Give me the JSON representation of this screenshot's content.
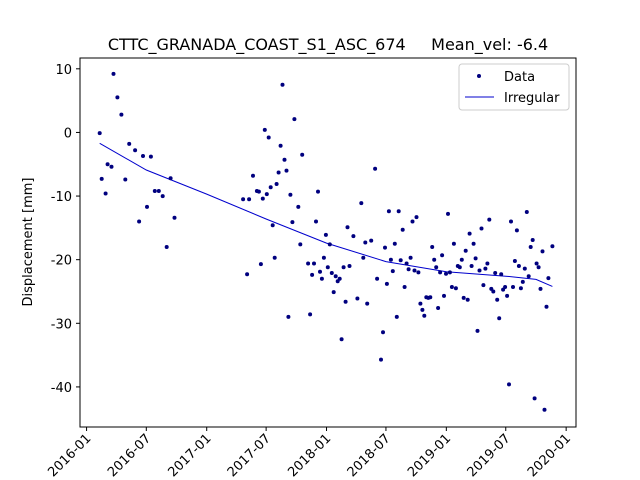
{
  "chart_data": {
    "type": "scatter",
    "title": "CTTC_GRANADA_COAST_S1_ASC_674     Mean_vel: -6.4",
    "xlabel": "",
    "ylabel": "Displacement [mm]",
    "x_ticks": [
      "2016-01",
      "2016-07",
      "2017-01",
      "2017-07",
      "2018-01",
      "2018-07",
      "2019-01",
      "2019-07",
      "2020-01"
    ],
    "x_tick_values": [
      "2016-01-01",
      "2016-07-01",
      "2017-01-01",
      "2017-07-01",
      "2018-01-01",
      "2018-07-01",
      "2019-01-01",
      "2019-07-01",
      "2020-01-01"
    ],
    "xlim": [
      "2015-12-12",
      "2020-01-31"
    ],
    "y_ticks": [
      10,
      0,
      -10,
      -20,
      -30,
      -40
    ],
    "ylim": [
      -46.3,
      11.7
    ],
    "legend": {
      "placement": "top-right",
      "entries": [
        "Data",
        "Irregular"
      ]
    },
    "grid": false,
    "colors": {
      "data": "#00007f",
      "fit": "#0000cd"
    },
    "series": [
      {
        "name": "Data",
        "type": "scatter",
        "points": [
          [
            "2016-02-10",
            -0.1
          ],
          [
            "2016-02-16",
            -7.3
          ],
          [
            "2016-02-28",
            -9.6
          ],
          [
            "2016-03-05",
            -5.0
          ],
          [
            "2016-03-17",
            -5.4
          ],
          [
            "2016-03-23",
            9.2
          ],
          [
            "2016-04-04",
            5.5
          ],
          [
            "2016-04-16",
            2.8
          ],
          [
            "2016-04-28",
            -7.4
          ],
          [
            "2016-05-10",
            -1.8
          ],
          [
            "2016-05-28",
            -2.8
          ],
          [
            "2016-06-09",
            -14.0
          ],
          [
            "2016-06-21",
            -3.7
          ],
          [
            "2016-07-03",
            -11.7
          ],
          [
            "2016-07-15",
            -3.8
          ],
          [
            "2016-07-27",
            -9.2
          ],
          [
            "2016-08-08",
            -9.2
          ],
          [
            "2016-08-20",
            -10.0
          ],
          [
            "2016-09-01",
            -18.0
          ],
          [
            "2016-09-13",
            -7.2
          ],
          [
            "2016-09-25",
            -13.4
          ],
          [
            "2017-04-22",
            -10.5
          ],
          [
            "2017-05-04",
            -22.3
          ],
          [
            "2017-05-10",
            -10.5
          ],
          [
            "2017-05-22",
            -6.8
          ],
          [
            "2017-06-03",
            -9.2
          ],
          [
            "2017-06-09",
            -9.3
          ],
          [
            "2017-06-15",
            -20.7
          ],
          [
            "2017-06-21",
            -10.4
          ],
          [
            "2017-06-27",
            0.4
          ],
          [
            "2017-07-03",
            -9.7
          ],
          [
            "2017-07-09",
            -0.8
          ],
          [
            "2017-07-15",
            -8.6
          ],
          [
            "2017-07-21",
            -14.6
          ],
          [
            "2017-07-27",
            -19.7
          ],
          [
            "2017-08-02",
            -8.1
          ],
          [
            "2017-08-08",
            -6.3
          ],
          [
            "2017-08-14",
            -2.1
          ],
          [
            "2017-08-20",
            7.5
          ],
          [
            "2017-08-26",
            -4.3
          ],
          [
            "2017-09-01",
            -6.0
          ],
          [
            "2017-09-07",
            -29.0
          ],
          [
            "2017-09-13",
            -9.8
          ],
          [
            "2017-09-19",
            -14.1
          ],
          [
            "2017-09-25",
            2.1
          ],
          [
            "2017-10-07",
            -11.7
          ],
          [
            "2017-10-13",
            -17.6
          ],
          [
            "2017-10-19",
            -3.5
          ],
          [
            "2017-11-06",
            -20.6
          ],
          [
            "2017-11-12",
            -28.6
          ],
          [
            "2017-11-18",
            -22.4
          ],
          [
            "2017-11-24",
            -20.6
          ],
          [
            "2017-11-30",
            -14.0
          ],
          [
            "2017-12-06",
            -9.3
          ],
          [
            "2017-12-12",
            -21.9
          ],
          [
            "2017-12-18",
            -23.0
          ],
          [
            "2017-12-24",
            -19.7
          ],
          [
            "2017-12-30",
            -16.1
          ],
          [
            "2018-01-05",
            -21.2
          ],
          [
            "2018-01-11",
            -17.6
          ],
          [
            "2018-01-17",
            -22.1
          ],
          [
            "2018-01-23",
            -25.1
          ],
          [
            "2018-01-29",
            -22.6
          ],
          [
            "2018-02-04",
            -23.4
          ],
          [
            "2018-02-10",
            -23.0
          ],
          [
            "2018-02-16",
            -32.5
          ],
          [
            "2018-02-22",
            -21.2
          ],
          [
            "2018-02-28",
            -26.6
          ],
          [
            "2018-03-06",
            -14.9
          ],
          [
            "2018-03-12",
            -21.0
          ],
          [
            "2018-03-24",
            -16.3
          ],
          [
            "2018-04-05",
            -26.1
          ],
          [
            "2018-04-17",
            -11.1
          ],
          [
            "2018-04-23",
            -19.7
          ],
          [
            "2018-04-29",
            -17.3
          ],
          [
            "2018-05-05",
            -26.9
          ],
          [
            "2018-05-17",
            -17.0
          ],
          [
            "2018-05-29",
            -5.7
          ],
          [
            "2018-06-04",
            -23.0
          ],
          [
            "2018-06-16",
            -35.7
          ],
          [
            "2018-06-22",
            -31.4
          ],
          [
            "2018-06-28",
            -18.1
          ],
          [
            "2018-07-04",
            -23.8
          ],
          [
            "2018-07-10",
            -12.4
          ],
          [
            "2018-07-16",
            -20.0
          ],
          [
            "2018-07-22",
            -21.8
          ],
          [
            "2018-07-28",
            -17.5
          ],
          [
            "2018-08-03",
            -29.0
          ],
          [
            "2018-08-09",
            -12.4
          ],
          [
            "2018-08-15",
            -20.1
          ],
          [
            "2018-08-21",
            -15.3
          ],
          [
            "2018-08-27",
            -24.3
          ],
          [
            "2018-09-02",
            -20.6
          ],
          [
            "2018-09-08",
            -21.5
          ],
          [
            "2018-09-14",
            -19.7
          ],
          [
            "2018-09-20",
            -14.0
          ],
          [
            "2018-09-26",
            -21.7
          ],
          [
            "2018-10-02",
            -13.3
          ],
          [
            "2018-10-08",
            -22.0
          ],
          [
            "2018-10-14",
            -26.9
          ],
          [
            "2018-10-20",
            -27.9
          ],
          [
            "2018-10-26",
            -28.8
          ],
          [
            "2018-11-01",
            -25.9
          ],
          [
            "2018-11-07",
            -26.0
          ],
          [
            "2018-11-13",
            -25.9
          ],
          [
            "2018-11-19",
            -18.0
          ],
          [
            "2018-11-25",
            -20.0
          ],
          [
            "2018-12-01",
            -21.2
          ],
          [
            "2018-12-07",
            -27.6
          ],
          [
            "2018-12-13",
            -22.0
          ],
          [
            "2018-12-19",
            -19.3
          ],
          [
            "2018-12-25",
            -25.7
          ],
          [
            "2018-12-31",
            -22.2
          ],
          [
            "2019-01-06",
            -12.8
          ],
          [
            "2019-01-12",
            -22.0
          ],
          [
            "2019-01-18",
            -24.3
          ],
          [
            "2019-01-24",
            -17.5
          ],
          [
            "2019-01-30",
            -24.5
          ],
          [
            "2019-02-05",
            -21.0
          ],
          [
            "2019-02-11",
            -21.2
          ],
          [
            "2019-02-17",
            -20.0
          ],
          [
            "2019-02-23",
            -26.0
          ],
          [
            "2019-03-01",
            -18.6
          ],
          [
            "2019-03-07",
            -26.3
          ],
          [
            "2019-03-13",
            -15.9
          ],
          [
            "2019-03-19",
            -21.0
          ],
          [
            "2019-03-25",
            -17.5
          ],
          [
            "2019-03-31",
            -19.8
          ],
          [
            "2019-04-06",
            -31.2
          ],
          [
            "2019-04-12",
            -21.7
          ],
          [
            "2019-04-18",
            -15.1
          ],
          [
            "2019-04-24",
            -24.0
          ],
          [
            "2019-04-30",
            -21.4
          ],
          [
            "2019-05-06",
            -20.6
          ],
          [
            "2019-05-12",
            -13.7
          ],
          [
            "2019-05-18",
            -24.6
          ],
          [
            "2019-05-24",
            -25.0
          ],
          [
            "2019-05-30",
            -22.1
          ],
          [
            "2019-06-05",
            -26.3
          ],
          [
            "2019-06-11",
            -29.2
          ],
          [
            "2019-06-17",
            -22.3
          ],
          [
            "2019-06-23",
            -24.7
          ],
          [
            "2019-06-29",
            -24.3
          ],
          [
            "2019-07-05",
            -25.7
          ],
          [
            "2019-07-11",
            -39.6
          ],
          [
            "2019-07-17",
            -14.0
          ],
          [
            "2019-07-23",
            -24.3
          ],
          [
            "2019-07-29",
            -20.2
          ],
          [
            "2019-08-04",
            -15.4
          ],
          [
            "2019-08-10",
            -21.0
          ],
          [
            "2019-08-16",
            -24.5
          ],
          [
            "2019-08-22",
            -23.5
          ],
          [
            "2019-08-28",
            -21.4
          ],
          [
            "2019-09-03",
            -12.5
          ],
          [
            "2019-09-09",
            -22.6
          ],
          [
            "2019-09-15",
            -18.0
          ],
          [
            "2019-09-21",
            -16.9
          ],
          [
            "2019-09-27",
            -41.8
          ],
          [
            "2019-10-03",
            -20.6
          ],
          [
            "2019-10-09",
            -21.2
          ],
          [
            "2019-10-15",
            -24.6
          ],
          [
            "2019-10-21",
            -18.7
          ],
          [
            "2019-10-27",
            -43.6
          ],
          [
            "2019-11-02",
            -27.4
          ],
          [
            "2019-11-08",
            -22.9
          ],
          [
            "2019-11-20",
            -17.9
          ]
        ]
      },
      {
        "name": "Irregular",
        "type": "line",
        "points": [
          [
            "2016-02-10",
            -1.7
          ],
          [
            "2016-07-01",
            -5.9
          ],
          [
            "2017-01-01",
            -9.7
          ],
          [
            "2017-07-01",
            -13.6
          ],
          [
            "2018-01-01",
            -17.4
          ],
          [
            "2018-07-01",
            -20.3
          ],
          [
            "2019-01-01",
            -21.9
          ],
          [
            "2019-07-01",
            -22.6
          ],
          [
            "2019-10-01",
            -23.1
          ],
          [
            "2019-11-20",
            -24.2
          ]
        ]
      }
    ]
  }
}
